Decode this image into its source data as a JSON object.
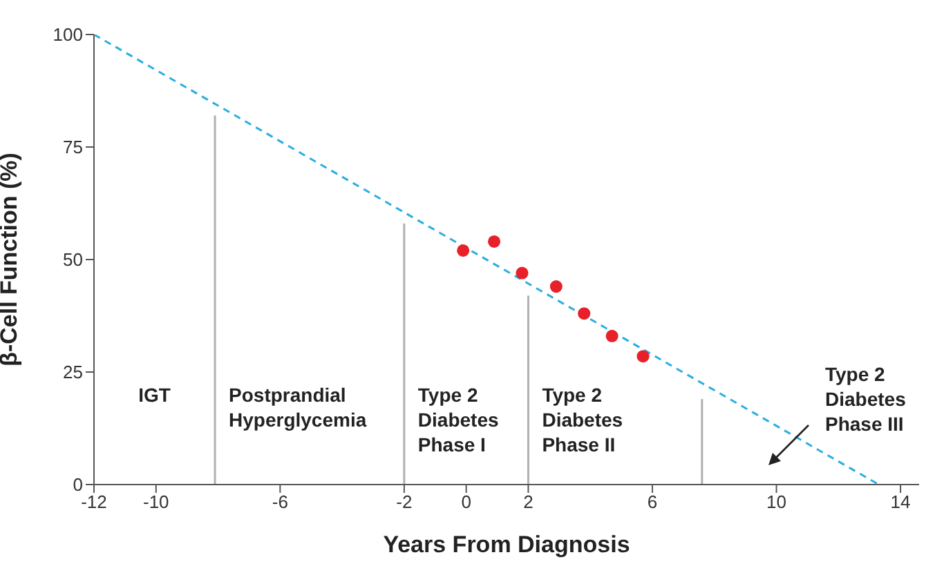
{
  "chart_data": {
    "type": "scatter",
    "xlabel": "Years From Diagnosis",
    "ylabel": "β-Cell Function (%)",
    "xlim": [
      -12,
      14.6
    ],
    "xticks": [
      -12,
      -10,
      -6,
      -2,
      0,
      2,
      6,
      10,
      14
    ],
    "ylim": [
      0,
      100
    ],
    "yticks": [
      0,
      25,
      50,
      75,
      100
    ],
    "series": [
      {
        "type": "line",
        "color": "#29aee0",
        "line_style": "dashed",
        "x": [
          -12,
          13.3
        ],
        "values": [
          100,
          0
        ]
      },
      {
        "type": "line",
        "color": "#b0b0b0",
        "line_style": "solid",
        "x": [
          -8.1,
          -8.1
        ],
        "values": [
          0,
          82
        ]
      },
      {
        "type": "line",
        "color": "#b0b0b0",
        "line_style": "solid",
        "x": [
          -2,
          -2
        ],
        "values": [
          0,
          58
        ]
      },
      {
        "type": "line",
        "color": "#b0b0b0",
        "line_style": "solid",
        "x": [
          2,
          2
        ],
        "values": [
          0,
          42
        ]
      },
      {
        "type": "line",
        "color": "#b0b0b0",
        "line_style": "solid",
        "x": [
          7.6,
          7.6
        ],
        "values": [
          0,
          19
        ]
      },
      {
        "color": "#e8202a",
        "marker": "circle",
        "x": [
          -0.1,
          0.9,
          1.8,
          2.9,
          3.8,
          4.7,
          5.7
        ],
        "values": [
          52,
          54,
          47,
          44,
          38,
          33,
          28.5
        ]
      }
    ],
    "annotations": [
      "IGT",
      "Postprandial\nHyperglycemia",
      "Type 2\nDiabetes\nPhase I",
      "Type 2\nDiabetes\nPhase II",
      "Type 2\nDiabetes\nPhase III"
    ]
  }
}
